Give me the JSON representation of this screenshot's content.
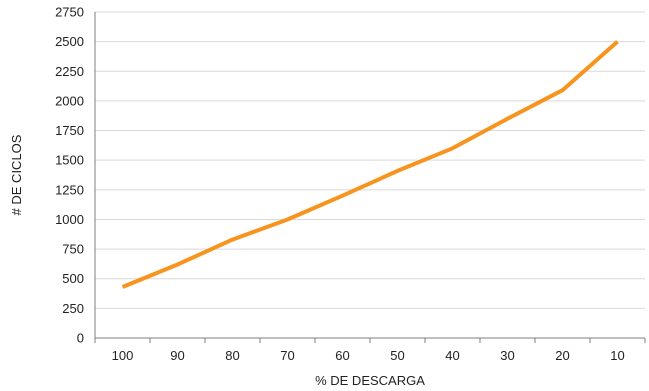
{
  "chart_data": {
    "type": "line",
    "xlabel": "% DE DESCARGA",
    "ylabel": "# DE CICLOS",
    "categories": [
      "100",
      "90",
      "80",
      "70",
      "60",
      "50",
      "40",
      "30",
      "20",
      "10"
    ],
    "series": [
      {
        "values": [
          430,
          620,
          830,
          1000,
          1200,
          1410,
          1600,
          1850,
          2090,
          2500
        ]
      }
    ],
    "ylim": [
      0,
      2750
    ],
    "yticks": [
      0,
      250,
      500,
      750,
      1000,
      1250,
      1500,
      1750,
      2000,
      2250,
      2500,
      2750
    ],
    "grid": true,
    "legend": "none",
    "colors": {
      "line": "#F7941D",
      "grid": "#D9D9D9",
      "axis": "#7F7F7F",
      "text": "#222222"
    }
  }
}
